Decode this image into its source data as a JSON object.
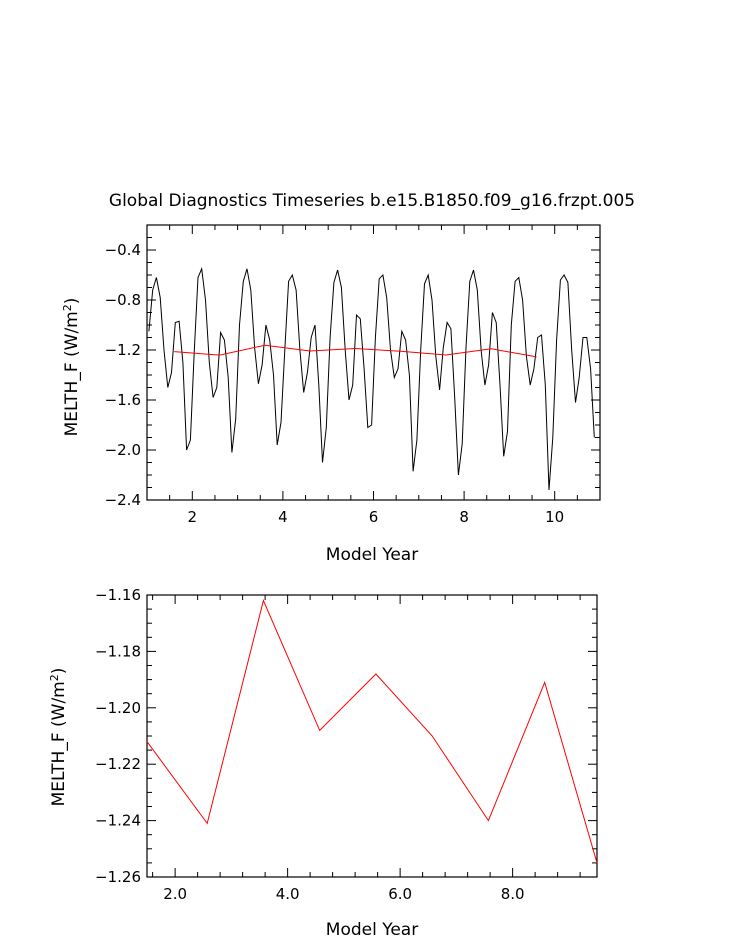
{
  "colors": {
    "monthly_line": "#000000",
    "annual_line": "#ff0000",
    "axis": "#000000",
    "background": "#ffffff"
  },
  "chart_data": [
    {
      "type": "line",
      "title": "Global Diagnostics Timeseries b.e15.B1850.f09_g16.frzpt.005",
      "xlabel": "Model Year",
      "ylabel": "MELTH_F (W/m²)",
      "ylabel_base": "MELTH_F (W/m",
      "ylabel_sup": "2",
      "ylabel_end": ")",
      "xlim": [
        1.0,
        11.0
      ],
      "ylim": [
        -2.4,
        -0.2
      ],
      "x_ticks": [
        2,
        4,
        6,
        8,
        10
      ],
      "x_tick_labels": [
        "2",
        "4",
        "6",
        "8",
        "10"
      ],
      "y_ticks": [
        -2.4,
        -2.0,
        -1.6,
        -1.2,
        -0.8,
        -0.4
      ],
      "y_tick_labels": [
        "−2.4",
        "−2.0",
        "−1.6",
        "−1.2",
        "−0.8",
        "−0.4"
      ],
      "grid": false,
      "series": [
        {
          "x_start": 1.0417,
          "x_step": 0.083333,
          "values": [
            -1.05,
            -0.72,
            -0.62,
            -0.78,
            -1.2,
            -1.5,
            -1.38,
            -0.98,
            -0.97,
            -1.3,
            -2.0,
            -1.92,
            -1.22,
            -0.62,
            -0.55,
            -0.8,
            -1.3,
            -1.58,
            -1.5,
            -1.06,
            -1.12,
            -1.42,
            -2.02,
            -1.75,
            -1.0,
            -0.65,
            -0.55,
            -0.72,
            -1.18,
            -1.47,
            -1.32,
            -1.0,
            -1.12,
            -1.4,
            -1.96,
            -1.78,
            -1.2,
            -0.65,
            -0.6,
            -0.72,
            -1.2,
            -1.54,
            -1.38,
            -1.1,
            -1.0,
            -1.48,
            -2.1,
            -1.82,
            -1.1,
            -0.66,
            -0.56,
            -0.7,
            -1.2,
            -1.6,
            -1.48,
            -0.92,
            -0.95,
            -1.35,
            -1.82,
            -1.8,
            -1.1,
            -0.63,
            -0.6,
            -0.78,
            -1.2,
            -1.42,
            -1.35,
            -1.05,
            -1.12,
            -1.4,
            -2.17,
            -1.92,
            -1.2,
            -0.67,
            -0.6,
            -0.8,
            -1.25,
            -1.52,
            -1.18,
            -0.98,
            -1.03,
            -1.58,
            -2.2,
            -1.95,
            -1.18,
            -0.65,
            -0.56,
            -0.72,
            -1.2,
            -1.48,
            -1.32,
            -0.9,
            -0.98,
            -1.48,
            -2.05,
            -1.85,
            -1.0,
            -0.65,
            -0.62,
            -0.8,
            -1.25,
            -1.48,
            -1.35,
            -1.1,
            -1.08,
            -1.48,
            -2.32,
            -1.9,
            -1.12,
            -0.64,
            -0.6,
            -0.66,
            -1.2,
            -1.62,
            -1.42,
            -1.1,
            -1.1,
            -1.35,
            -1.9
          ]
        },
        {
          "x": [
            1.6,
            2.6,
            3.6,
            4.6,
            5.6,
            6.6,
            7.6,
            8.6,
            9.6
          ],
          "values": [
            -1.213,
            -1.241,
            -1.162,
            -1.208,
            -1.188,
            -1.21,
            -1.24,
            -1.19,
            -1.255
          ]
        }
      ]
    },
    {
      "type": "line",
      "title": "",
      "xlabel": "Model Year",
      "ylabel": "MELTH_F (W/m²)",
      "ylabel_base": "MELTH_F (W/m",
      "ylabel_sup": "2",
      "ylabel_end": ")",
      "xlim": [
        1.5,
        9.5
      ],
      "ylim": [
        -1.26,
        -1.16
      ],
      "x_ticks": [
        2,
        4,
        6,
        8
      ],
      "x_tick_labels": [
        "2.0",
        "4.0",
        "6.0",
        "8.0"
      ],
      "y_ticks": [
        -1.26,
        -1.24,
        -1.22,
        -1.2,
        -1.18,
        -1.16
      ],
      "y_tick_labels": [
        "−1.26",
        "−1.24",
        "−1.22",
        "−1.20",
        "−1.18",
        "−1.16"
      ],
      "grid": false,
      "series": [
        {
          "x": [
            1.5,
            2.57,
            3.57,
            4.57,
            5.57,
            6.57,
            7.57,
            8.57,
            9.5
          ],
          "values": [
            -1.212,
            -1.241,
            -1.162,
            -1.208,
            -1.188,
            -1.21,
            -1.24,
            -1.191,
            -1.255
          ]
        }
      ]
    }
  ]
}
